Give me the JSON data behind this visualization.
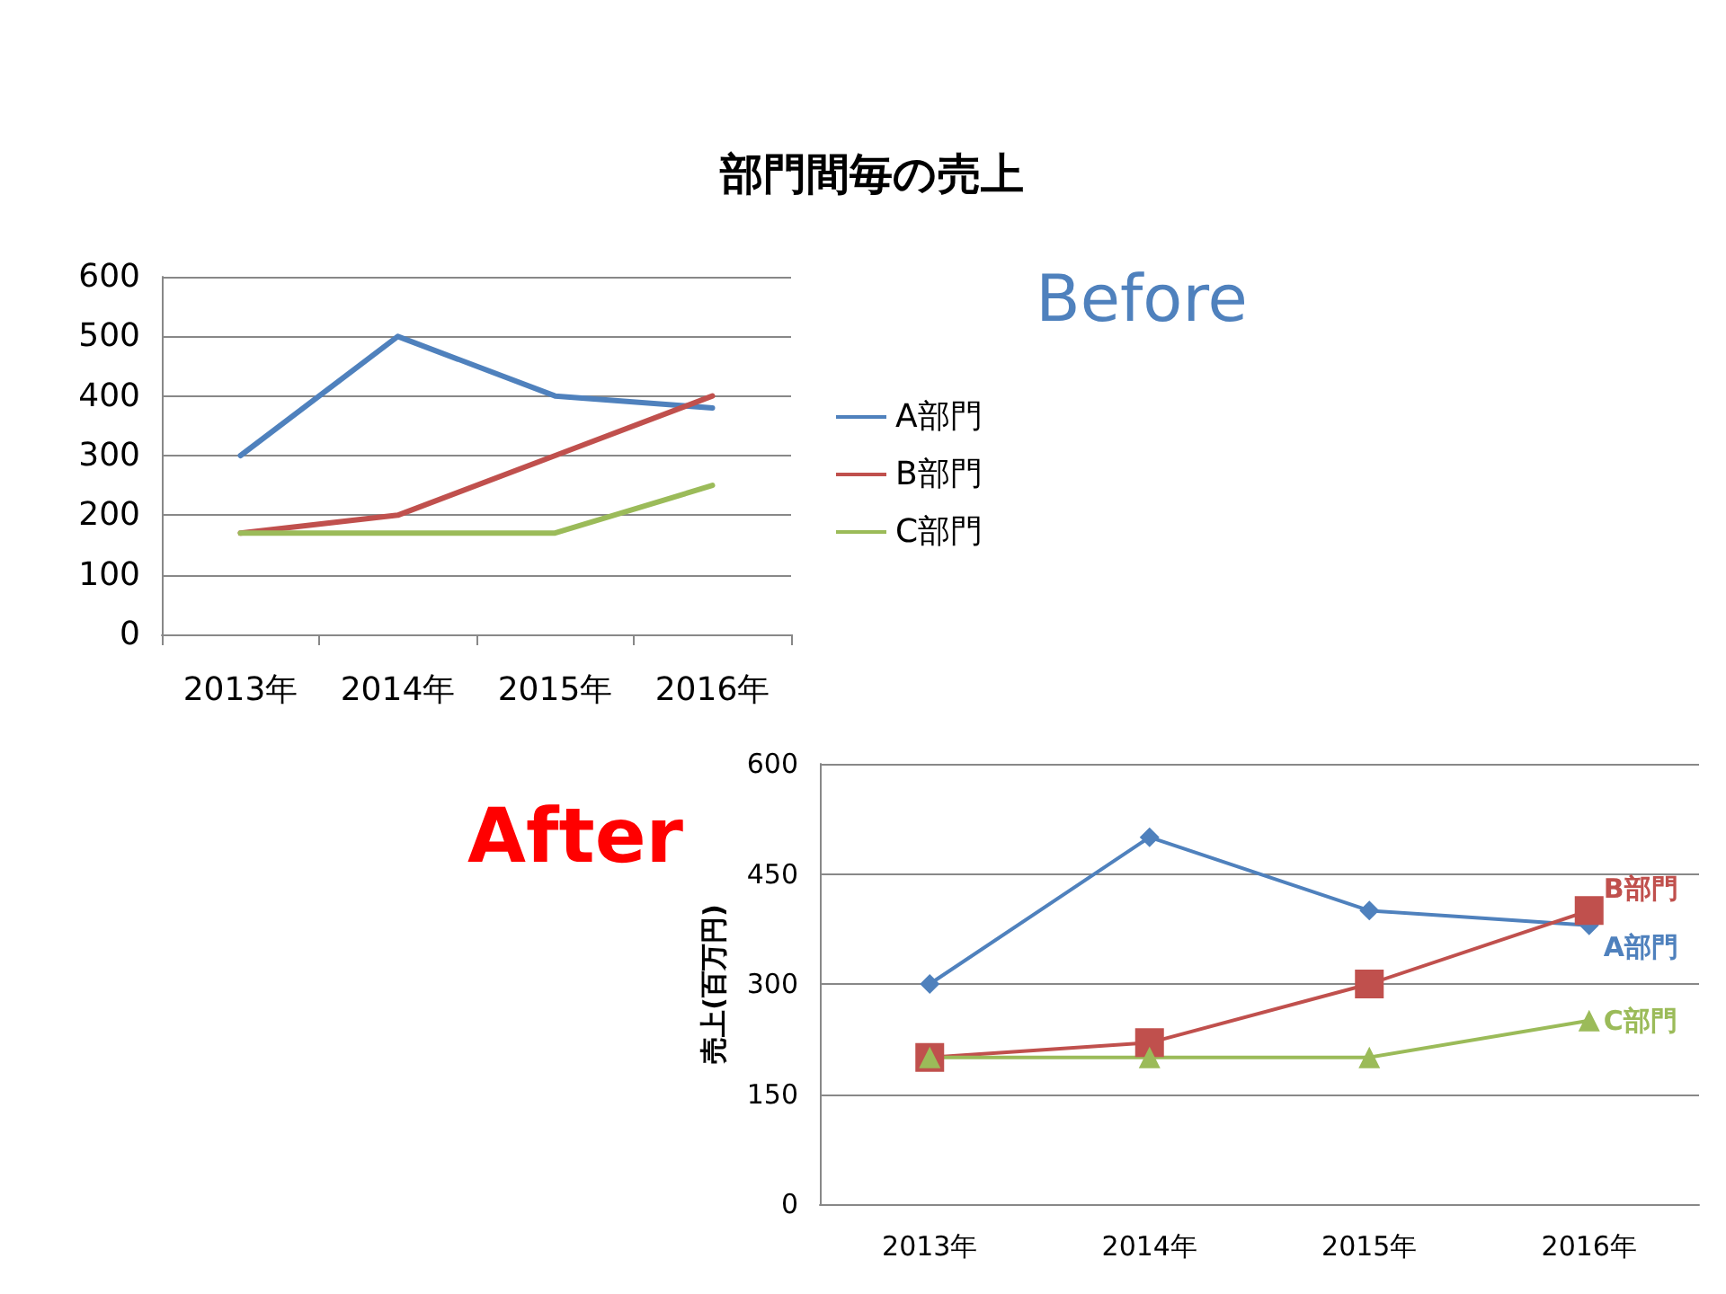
{
  "chart_data": [
    {
      "type": "line",
      "title": "部門間毎の売上",
      "annotations": [
        "Before"
      ],
      "categories": [
        "2013年",
        "2014年",
        "2015年",
        "2016年"
      ],
      "series": [
        {
          "name": "A部門",
          "color": "#4f81bd",
          "values": [
            300,
            500,
            400,
            380
          ]
        },
        {
          "name": "B部門",
          "color": "#c0504d",
          "values": [
            170,
            200,
            300,
            400
          ]
        },
        {
          "name": "C部門",
          "color": "#9bbb59",
          "values": [
            170,
            170,
            170,
            250
          ]
        }
      ],
      "ylim": [
        0,
        600
      ],
      "yticks": [
        0,
        100,
        200,
        300,
        400,
        500,
        600
      ],
      "grid": "y",
      "legend": "right",
      "marker": "none",
      "line_style": "solid"
    },
    {
      "type": "line",
      "ylabel": "売上(百万円)",
      "annotations": [
        "After"
      ],
      "categories": [
        "2013年",
        "2014年",
        "2015年",
        "2016年"
      ],
      "series": [
        {
          "name": "A部門",
          "color": "#4f81bd",
          "marker": "diamond",
          "values": [
            300,
            500,
            400,
            380
          ]
        },
        {
          "name": "B部門",
          "color": "#c0504d",
          "marker": "square",
          "values": [
            200,
            220,
            300,
            400
          ]
        },
        {
          "name": "C部門",
          "color": "#9bbb59",
          "marker": "triangle",
          "values": [
            200,
            200,
            200,
            250
          ]
        }
      ],
      "ylim": [
        0,
        600
      ],
      "yticks": [
        0,
        150,
        300,
        450,
        600
      ],
      "grid": "y",
      "legend": false,
      "line_style": "solid"
    }
  ]
}
